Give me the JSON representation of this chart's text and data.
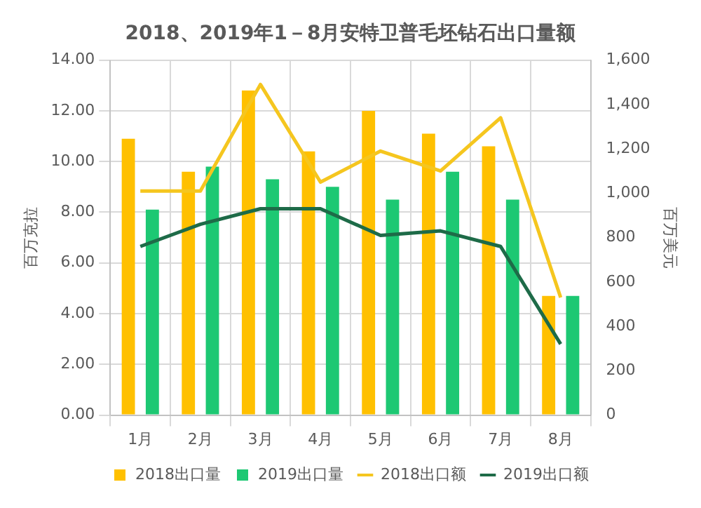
{
  "chart_data": {
    "type": "bar",
    "title": "2018、2019年1－8月安特卫普毛坯钻石出口量额",
    "ylabel": "百万克拉",
    "y2label": "百万美元",
    "categories": [
      "1月",
      "2月",
      "3月",
      "4月",
      "5月",
      "6月",
      "7月",
      "8月"
    ],
    "series": [
      {
        "name": "2018出口量",
        "color": "#ffc000",
        "values": [
          10.9,
          9.6,
          12.8,
          10.4,
          12.0,
          11.1,
          10.6,
          4.7
        ]
      },
      {
        "name": "2019出口量",
        "color": "#1dc873",
        "values": [
          8.1,
          9.8,
          9.3,
          9.0,
          8.5,
          9.6,
          8.5,
          4.7
        ]
      },
      {
        "name": "2018出口额",
        "type": "line",
        "axis": "y2",
        "color": "#f5c61f",
        "values": [
          1010,
          1010,
          1490,
          1050,
          1190,
          1100,
          1340,
          530
        ]
      },
      {
        "name": "2019出口额",
        "type": "line",
        "axis": "y2",
        "color": "#1e6b48",
        "values": [
          760,
          860,
          930,
          930,
          810,
          830,
          760,
          320
        ]
      }
    ],
    "ylim": [
      0,
      14
    ],
    "yticks": [
      {
        "value": 0,
        "label": "0.00"
      },
      {
        "value": 2,
        "label": "2.00"
      },
      {
        "value": 4,
        "label": "4.00"
      },
      {
        "value": 6,
        "label": "6.00"
      },
      {
        "value": 8,
        "label": "8.00"
      },
      {
        "value": 10,
        "label": "10.00"
      },
      {
        "value": 12,
        "label": "12.00"
      },
      {
        "value": 14,
        "label": "14.00"
      }
    ],
    "y2lim": [
      0,
      1600
    ],
    "y2ticks": [
      0,
      200,
      400,
      600,
      800,
      {
        "value": 1000,
        "label": "1,000"
      },
      {
        "value": 1200,
        "label": "1,200"
      },
      {
        "value": 1400,
        "label": "1,400"
      },
      {
        "value": 1600,
        "label": "1,600"
      }
    ],
    "grid": true,
    "legend": "bottom",
    "marker": "none"
  }
}
